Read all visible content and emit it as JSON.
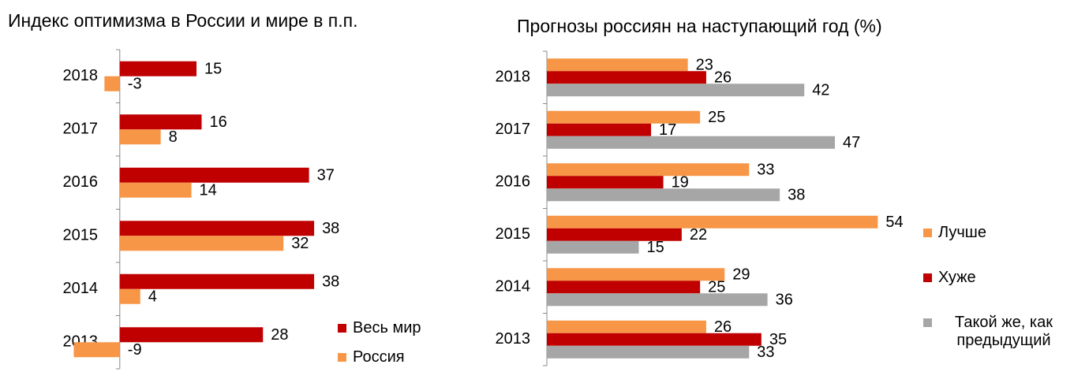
{
  "chart_data": [
    {
      "type": "bar",
      "orientation": "horizontal",
      "title": "Индекс оптимизма в России и мире в п.п.",
      "categories": [
        "2018",
        "2017",
        "2016",
        "2015",
        "2014",
        "2013"
      ],
      "series": [
        {
          "name": "Весь мир",
          "color": "#c00000",
          "values": [
            15,
            16,
            37,
            38,
            38,
            28
          ]
        },
        {
          "name": "Россия",
          "color": "#f79646",
          "values": [
            -3,
            8,
            14,
            32,
            4,
            -9
          ]
        }
      ],
      "xlim": [
        -10,
        42
      ],
      "legend": "bottom-right"
    },
    {
      "type": "bar",
      "orientation": "horizontal",
      "title": "Прогнозы россиян на наступающий год (%)",
      "categories": [
        "2018",
        "2017",
        "2016",
        "2015",
        "2014",
        "2013"
      ],
      "series": [
        {
          "name": "Лучше",
          "color": "#f79646",
          "values": [
            23,
            25,
            33,
            54,
            29,
            26
          ]
        },
        {
          "name": "Хуже",
          "color": "#c00000",
          "values": [
            26,
            17,
            19,
            22,
            25,
            35
          ]
        },
        {
          "name": "Такой же, как предыдущий",
          "color": "#a6a6a6",
          "values": [
            42,
            47,
            38,
            15,
            36,
            33
          ]
        }
      ],
      "xlim": [
        0,
        60
      ],
      "legend": "right"
    }
  ]
}
